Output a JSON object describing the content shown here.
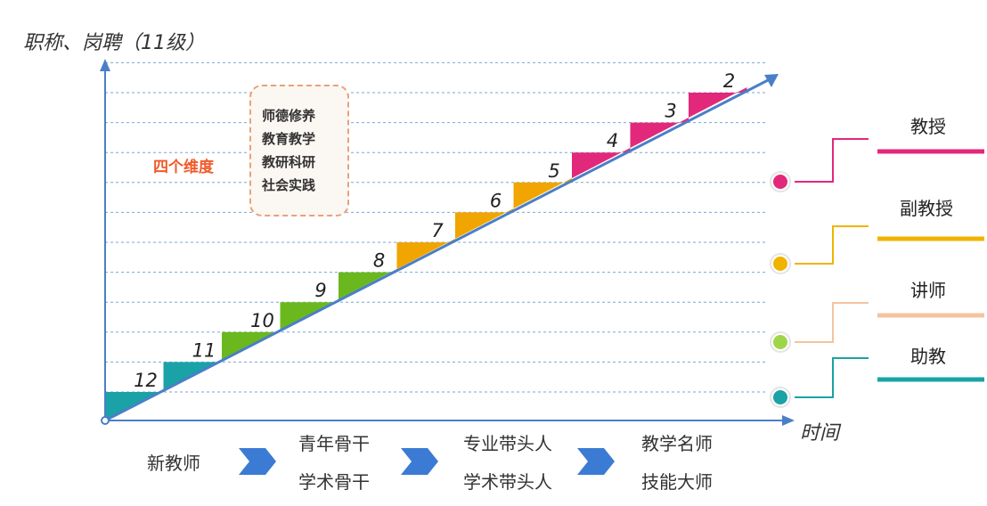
{
  "y_axis_title": "职称、岗聘（11级）",
  "x_axis_title": "时间",
  "steps": [
    {
      "level": "12",
      "color": "#1aa2a6"
    },
    {
      "level": "11",
      "color": "#1aa2a6"
    },
    {
      "level": "10",
      "color": "#6bb81e"
    },
    {
      "level": "9",
      "color": "#6bb81e"
    },
    {
      "level": "8",
      "color": "#6bb81e"
    },
    {
      "level": "7",
      "color": "#f0a500"
    },
    {
      "level": "6",
      "color": "#f0a500"
    },
    {
      "level": "5",
      "color": "#f0a500"
    },
    {
      "level": "4",
      "color": "#e2287a"
    },
    {
      "level": "3",
      "color": "#e2287a"
    },
    {
      "level": "2",
      "color": "#e2287a"
    }
  ],
  "dimensions": {
    "label": "四个维度",
    "items": [
      "师德修养",
      "教育教学",
      "教研科研",
      "社会实践"
    ]
  },
  "ranks": [
    {
      "name": "教授",
      "color": "#e2287a"
    },
    {
      "name": "副教授",
      "color": "#f0b400"
    },
    {
      "name": "讲师",
      "color": "#f4c4a0"
    },
    {
      "name": "助教",
      "color": "#1aa2a6"
    }
  ],
  "rank_dot_colors": [
    "#e2287a",
    "#f0b400",
    "#9ed64a",
    "#1aa2a6"
  ],
  "career_path": [
    {
      "lines": [
        "新教师"
      ]
    },
    {
      "lines": [
        "青年骨干",
        "学术骨干"
      ]
    },
    {
      "lines": [
        "专业带头人",
        "学术带头人"
      ]
    },
    {
      "lines": [
        "教学名师",
        "技能大师"
      ]
    }
  ],
  "colors": {
    "axis": "#4a7fc8",
    "grid": "#7aa6d8",
    "chevron": "#3b7bd4"
  }
}
